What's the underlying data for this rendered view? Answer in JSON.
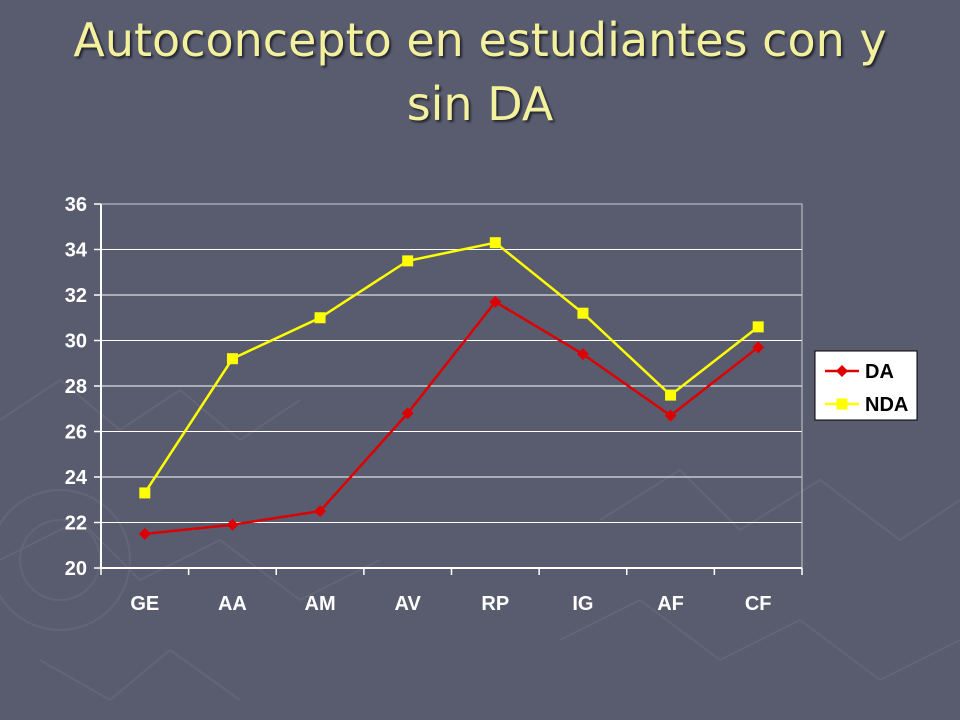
{
  "slide": {
    "title_line1": "Autoconcepto en estudiantes con y",
    "title_line2": "sin DA"
  },
  "colors": {
    "background": "#595c6e",
    "title": "#f3f09e",
    "grid": "#ffffff",
    "legend_bg": "#ffffff"
  },
  "chart_data": {
    "type": "line",
    "title": "",
    "xlabel": "",
    "ylabel": "",
    "categories": [
      "GE",
      "AA",
      "AM",
      "AV",
      "RP",
      "IG",
      "AF",
      "CF"
    ],
    "ylim": [
      20,
      36
    ],
    "yticks": [
      20,
      22,
      24,
      26,
      28,
      30,
      32,
      34,
      36
    ],
    "grid": true,
    "legend_position": "right",
    "series": [
      {
        "name": "DA",
        "color": "#dd0000",
        "marker": "diamond",
        "values": [
          21.5,
          21.9,
          22.5,
          26.8,
          31.7,
          29.4,
          26.7,
          29.7
        ]
      },
      {
        "name": "NDA",
        "color": "#ffff00",
        "marker": "square",
        "values": [
          23.3,
          29.2,
          31.0,
          33.5,
          34.3,
          31.2,
          27.6,
          30.6
        ]
      }
    ]
  }
}
